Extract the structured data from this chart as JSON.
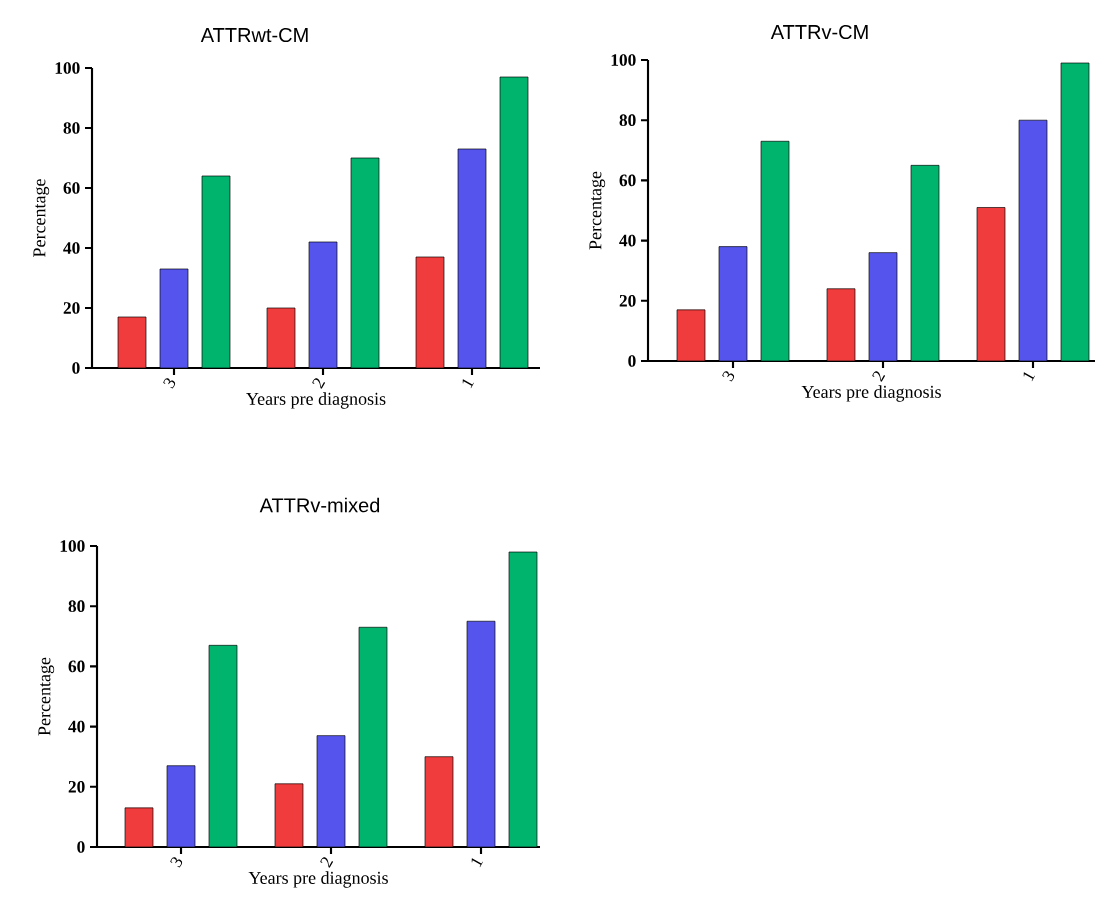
{
  "chart_data": [
    {
      "type": "bar",
      "title": "ATTRwt-CM",
      "xlabel": "Years pre diagnosis",
      "ylabel": "Percentage",
      "categories": [
        "3",
        "2",
        "1"
      ],
      "ylim": [
        0,
        100
      ],
      "yticks": [
        0,
        20,
        40,
        60,
        80,
        100
      ],
      "series": [
        {
          "color": "#f03c3c",
          "values": [
            17,
            20,
            37
          ]
        },
        {
          "color": "#5555ee",
          "values": [
            33,
            42,
            73
          ]
        },
        {
          "color": "#00b46e",
          "values": [
            64,
            70,
            97
          ]
        }
      ]
    },
    {
      "type": "bar",
      "title": "ATTRv-CM",
      "xlabel": "Years pre diagnosis",
      "ylabel": "Percentage",
      "categories": [
        "3",
        "2",
        "1"
      ],
      "ylim": [
        0,
        100
      ],
      "yticks": [
        0,
        20,
        40,
        60,
        80,
        100
      ],
      "series": [
        {
          "color": "#f03c3c",
          "values": [
            17,
            24,
            51
          ]
        },
        {
          "color": "#5555ee",
          "values": [
            38,
            36,
            80
          ]
        },
        {
          "color": "#00b46e",
          "values": [
            73,
            65,
            99
          ]
        }
      ]
    },
    {
      "type": "bar",
      "title": "ATTRv-mixed",
      "xlabel": "Years pre diagnosis",
      "ylabel": "Percentage",
      "categories": [
        "3",
        "2",
        "1"
      ],
      "ylim": [
        0,
        100
      ],
      "yticks": [
        0,
        20,
        40,
        60,
        80,
        100
      ],
      "series": [
        {
          "color": "#f03c3c",
          "values": [
            13,
            21,
            30
          ]
        },
        {
          "color": "#5555ee",
          "values": [
            27,
            37,
            75
          ]
        },
        {
          "color": "#00b46e",
          "values": [
            67,
            73,
            98
          ]
        }
      ]
    }
  ]
}
